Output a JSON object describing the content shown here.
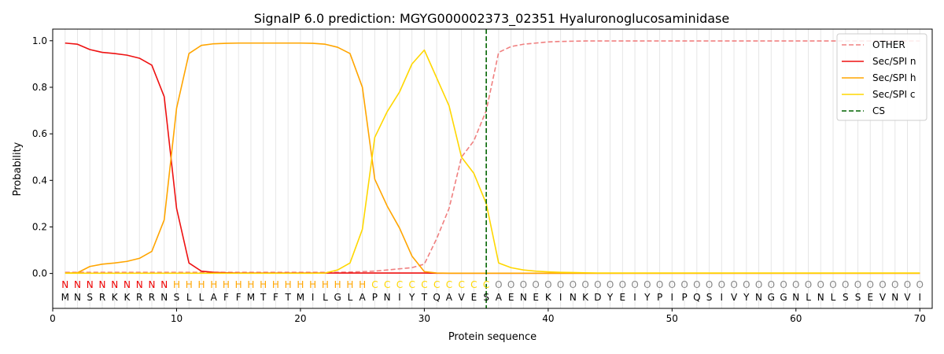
{
  "chart_data": {
    "type": "line",
    "title": "SignalP 6.0 prediction: MGYG000002373_02351 Hyaluronoglucosaminidase",
    "xlabel": "Protein sequence",
    "ylabel": "Probability",
    "xlim": [
      0,
      71
    ],
    "ylim": [
      -0.15,
      1.05
    ],
    "x_ticks": [
      0,
      10,
      20,
      30,
      40,
      50,
      60,
      70
    ],
    "y_ticks": [
      0.0,
      0.2,
      0.4,
      0.6,
      0.8,
      1.0
    ],
    "x_tick_labels": [
      "0",
      "10",
      "20",
      "30",
      "40",
      "50",
      "60",
      "70"
    ],
    "y_tick_labels": [
      "0.0",
      "0.2",
      "0.4",
      "0.6",
      "0.8",
      "1.0"
    ],
    "legend_position": "top-right",
    "grid": "vertical lines at each residue",
    "sequence": [
      "M",
      "N",
      "S",
      "R",
      "K",
      "K",
      "R",
      "R",
      "N",
      "S",
      "L",
      "L",
      "A",
      "F",
      "F",
      "M",
      "T",
      "F",
      "T",
      "M",
      "I",
      "L",
      "G",
      "L",
      "A",
      "P",
      "N",
      "I",
      "Y",
      "T",
      "Q",
      "A",
      "V",
      "E",
      "S",
      "A",
      "E",
      "N",
      "E",
      "K",
      "I",
      "N",
      "K",
      "D",
      "Y",
      "E",
      "I",
      "Y",
      "P",
      "I",
      "P",
      "Q",
      "S",
      "I",
      "V",
      "Y",
      "N",
      "G",
      "G",
      "N",
      "L",
      "N",
      "L",
      "S",
      "S",
      "E",
      "V",
      "N",
      "V",
      "I"
    ],
    "region_labels": [
      "N",
      "N",
      "N",
      "N",
      "N",
      "N",
      "N",
      "N",
      "N",
      "H",
      "H",
      "H",
      "H",
      "H",
      "H",
      "H",
      "H",
      "H",
      "H",
      "H",
      "H",
      "H",
      "H",
      "H",
      "H",
      "C",
      "C",
      "C",
      "C",
      "C",
      "C",
      "C",
      "C",
      "C",
      "C",
      "O",
      "O",
      "O",
      "O",
      "O",
      "O",
      "O",
      "O",
      "O",
      "O",
      "O",
      "O",
      "O",
      "O",
      "O",
      "O",
      "O",
      "O",
      "O",
      "O",
      "O",
      "O",
      "O",
      "O",
      "O",
      "O",
      "O",
      "O",
      "O",
      "O",
      "O",
      "O",
      "O",
      "O",
      "O"
    ],
    "region_colors": {
      "N": "#ee0000",
      "H": "#ffa500",
      "C": "#ffd700",
      "O": "#888888"
    },
    "cs_position": 35,
    "series": [
      {
        "name": "OTHER",
        "color": "#f08080",
        "dash": true,
        "values": [
          0.005,
          0.005,
          0.005,
          0.005,
          0.005,
          0.005,
          0.005,
          0.005,
          0.005,
          0.005,
          0.005,
          0.005,
          0.005,
          0.005,
          0.005,
          0.005,
          0.005,
          0.005,
          0.005,
          0.005,
          0.005,
          0.005,
          0.005,
          0.006,
          0.008,
          0.01,
          0.015,
          0.02,
          0.025,
          0.04,
          0.15,
          0.28,
          0.5,
          0.57,
          0.7,
          0.95,
          0.975,
          0.985,
          0.99,
          0.995,
          0.997,
          0.998,
          0.999,
          0.999,
          0.999,
          0.999,
          0.999,
          0.999,
          0.999,
          0.999,
          0.999,
          0.999,
          0.999,
          0.999,
          0.999,
          0.999,
          0.999,
          0.999,
          0.999,
          0.999,
          0.999,
          0.999,
          0.999,
          0.999,
          0.999,
          0.999,
          0.999,
          0.999,
          0.999,
          0.999
        ]
      },
      {
        "name": "Sec/SPI n",
        "color": "#ee1111",
        "dash": false,
        "values": [
          0.99,
          0.985,
          0.962,
          0.95,
          0.945,
          0.938,
          0.925,
          0.895,
          0.76,
          0.28,
          0.045,
          0.01,
          0.005,
          0.003,
          0.002,
          0.002,
          0.002,
          0.002,
          0.002,
          0.002,
          0.002,
          0.002,
          0.002,
          0.002,
          0.002,
          0.002,
          0.002,
          0.002,
          0.002,
          0.002,
          0.001,
          0.001,
          0.001,
          0.001,
          0.001,
          0.001,
          0.001,
          0.001,
          0.001,
          0.001,
          0.001,
          0.001,
          0.001,
          0.001,
          0.001,
          0.001,
          0.001,
          0.001,
          0.001,
          0.001,
          0.001,
          0.001,
          0.001,
          0.001,
          0.001,
          0.001,
          0.001,
          0.001,
          0.001,
          0.001,
          0.001,
          0.001,
          0.001,
          0.001,
          0.001,
          0.001,
          0.001,
          0.001,
          0.001,
          0.001
        ]
      },
      {
        "name": "Sec/SPI h",
        "color": "#ffa500",
        "dash": false,
        "values": [
          0.002,
          0.003,
          0.03,
          0.04,
          0.045,
          0.052,
          0.065,
          0.095,
          0.23,
          0.71,
          0.945,
          0.98,
          0.987,
          0.989,
          0.99,
          0.99,
          0.99,
          0.99,
          0.99,
          0.99,
          0.989,
          0.985,
          0.972,
          0.945,
          0.8,
          0.405,
          0.29,
          0.195,
          0.075,
          0.008,
          0.002,
          0.001,
          0.001,
          0.001,
          0.001,
          0.001,
          0.001,
          0.001,
          0.001,
          0.001,
          0.001,
          0.001,
          0.001,
          0.001,
          0.001,
          0.001,
          0.001,
          0.001,
          0.001,
          0.001,
          0.001,
          0.001,
          0.001,
          0.001,
          0.001,
          0.001,
          0.001,
          0.001,
          0.001,
          0.001,
          0.001,
          0.001,
          0.001,
          0.001,
          0.001,
          0.001,
          0.001,
          0.001,
          0.001,
          0.001
        ]
      },
      {
        "name": "Sec/SPI c",
        "color": "#ffd700",
        "dash": false,
        "values": [
          0.001,
          0.001,
          0.001,
          0.001,
          0.001,
          0.001,
          0.001,
          0.001,
          0.001,
          0.001,
          0.001,
          0.001,
          0.001,
          0.001,
          0.001,
          0.001,
          0.001,
          0.001,
          0.001,
          0.001,
          0.001,
          0.002,
          0.015,
          0.045,
          0.19,
          0.585,
          0.695,
          0.78,
          0.9,
          0.96,
          0.84,
          0.72,
          0.5,
          0.43,
          0.3,
          0.045,
          0.025,
          0.015,
          0.01,
          0.007,
          0.005,
          0.004,
          0.003,
          0.002,
          0.002,
          0.002,
          0.002,
          0.002,
          0.002,
          0.002,
          0.002,
          0.002,
          0.002,
          0.002,
          0.002,
          0.002,
          0.002,
          0.002,
          0.002,
          0.002,
          0.002,
          0.002,
          0.002,
          0.002,
          0.002,
          0.002,
          0.002,
          0.002,
          0.002,
          0.002
        ]
      },
      {
        "name": "CS",
        "color": "#006400",
        "dash": true,
        "values": []
      }
    ]
  }
}
